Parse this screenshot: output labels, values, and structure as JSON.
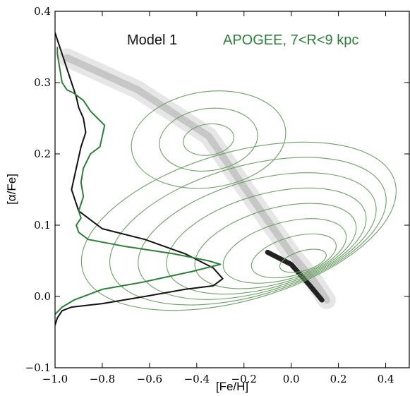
{
  "chart_data": {
    "type": "line",
    "xlabel": "[Fe/H]",
    "ylabel": "[α/Fe]",
    "xlim": [
      -1.0,
      0.5
    ],
    "ylim": [
      -0.1,
      0.4
    ],
    "xticks": [
      -1.0,
      -0.8,
      -0.6,
      -0.4,
      -0.2,
      0.0,
      0.2,
      0.4
    ],
    "xtick_labels": [
      "−1.0",
      "−0.8",
      "−0.6",
      "−0.4",
      "−0.2",
      "0.0",
      "0.2",
      "0.4"
    ],
    "yticks": [
      -0.1,
      0.0,
      0.1,
      0.2,
      0.3,
      0.4
    ],
    "ytick_labels": [
      "−0.1",
      "0.0",
      "0.1",
      "0.2",
      "0.3",
      "0.4"
    ],
    "grid": false,
    "legend_placement": "top-right",
    "series": [
      {
        "name": "Model 1",
        "color": "#111111",
        "kind": "marginal [α/Fe] distribution",
        "x": [
          -1.0,
          -0.99,
          -0.97,
          -0.95,
          -0.93,
          -0.91,
          -0.9,
          -0.88,
          -0.87,
          -0.89,
          -0.91,
          -0.93,
          -0.9,
          -0.8,
          -0.62,
          -0.45,
          -0.33,
          -0.29,
          -0.33,
          -0.45,
          -0.62,
          -0.8,
          -0.93,
          -0.97,
          -0.99,
          -1.0
        ],
        "y": [
          0.37,
          0.36,
          0.34,
          0.32,
          0.3,
          0.28,
          0.265,
          0.25,
          0.23,
          0.21,
          0.18,
          0.15,
          0.12,
          0.095,
          0.08,
          0.06,
          0.04,
          0.025,
          0.015,
          0.01,
          0.0,
          -0.01,
          -0.015,
          -0.02,
          -0.03,
          -0.04
        ]
      },
      {
        "name": "APOGEE, 7<R<9 kpc",
        "color": "#2e7d3a",
        "kind": "marginal [α/Fe] distribution",
        "x": [
          -0.99,
          -0.99,
          -0.97,
          -0.95,
          -0.92,
          -0.88,
          -0.85,
          -0.82,
          -0.79,
          -0.8,
          -0.81,
          -0.85,
          -0.88,
          -0.89,
          -0.88,
          -0.9,
          -0.89,
          -0.91,
          -0.9,
          -0.86,
          -0.7,
          -0.5,
          -0.35,
          -0.3,
          -0.42,
          -0.63,
          -0.8,
          -0.92,
          -0.97,
          -1.0
        ],
        "y": [
          0.35,
          0.34,
          0.3,
          0.29,
          0.285,
          0.275,
          0.26,
          0.25,
          0.24,
          0.225,
          0.21,
          0.2,
          0.18,
          0.16,
          0.14,
          0.12,
          0.11,
          0.1,
          0.09,
          0.08,
          0.07,
          0.06,
          0.05,
          0.045,
          0.035,
          0.02,
          0.01,
          -0.005,
          -0.015,
          -0.025
        ]
      }
    ],
    "apogee_contours": {
      "color": "#6f9f68",
      "levels": 8,
      "center": [
        0.05,
        0.05
      ],
      "secondary_peak": [
        -0.35,
        0.22
      ]
    },
    "model_density": {
      "colors": [
        "#e6e6e6",
        "#b9b9b9",
        "#222222"
      ],
      "ridge_x": [
        -0.95,
        -0.65,
        -0.35,
        -0.15,
        0.0,
        0.1,
        0.15
      ],
      "ridge_y": [
        0.335,
        0.29,
        0.225,
        0.13,
        0.06,
        0.02,
        -0.005
      ]
    }
  }
}
